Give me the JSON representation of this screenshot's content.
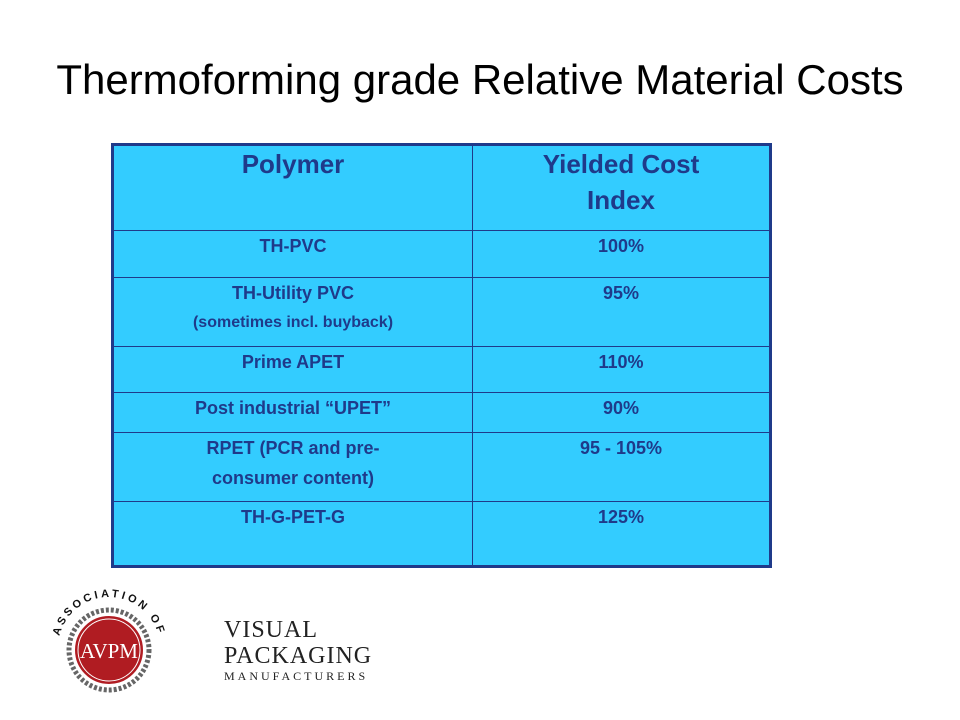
{
  "slide": {
    "title": "Thermoforming grade Relative Material Costs"
  },
  "table": {
    "headers": {
      "polymer": "Polymer",
      "cost_line1": "Yielded Cost",
      "cost_line2": "Index"
    },
    "rows": [
      {
        "polymer": "TH-PVC",
        "index": "100%"
      },
      {
        "polymer": "TH-Utility PVC",
        "note": "(sometimes incl. buyback)",
        "index": "95%"
      },
      {
        "polymer": "Prime APET",
        "index": "110%"
      },
      {
        "polymer": "Post industrial “UPET”",
        "index": "90%"
      },
      {
        "polymer_line1": "RPET (PCR and pre-",
        "polymer_line2": "consumer content)",
        "index": "95 - 105%"
      },
      {
        "polymer": "TH-G-PET-G",
        "index": "125%"
      }
    ],
    "colors": {
      "fill": "#33ccff",
      "text": "#1f3a8a"
    }
  },
  "logo": {
    "seal_text": "ASSOCIATION OF",
    "seal_initials": "AVPM",
    "name_line1": "VISUAL",
    "name_line2": "PACKAGING",
    "name_line3": "MANUFACTURERS",
    "colors": {
      "seal_red": "#b01c22",
      "ring": "#666666"
    }
  }
}
